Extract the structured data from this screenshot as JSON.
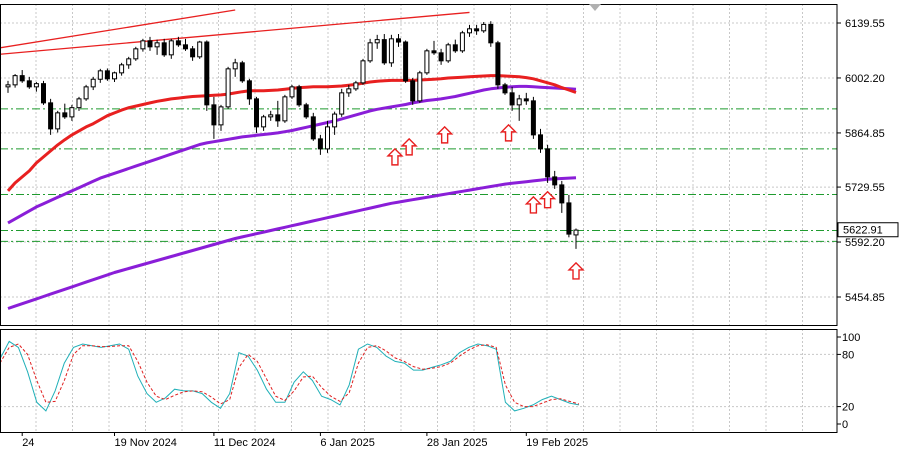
{
  "chart_data": {
    "type": "candlestick",
    "price_panel": {
      "y_ticks": [
        6139.55,
        6002.2,
        5864.85,
        5729.55,
        5592.2,
        5454.85
      ],
      "y_tick_labels": [
        "6139.55",
        "6002.20",
        "5864.85",
        "5729.55",
        "5592.20",
        "5454.85"
      ],
      "ylim": [
        5420,
        6172
      ],
      "current_price": 5622.91,
      "current_price_label": "5622.91",
      "horizontal_levels": [
        5925,
        5825,
        5711,
        5621,
        5594
      ],
      "grid": true,
      "candles": [
        [
          5980,
          5995,
          5965,
          5985
        ],
        [
          5985,
          6012,
          5978,
          6008
        ],
        [
          6008,
          6022,
          5990,
          5995
        ],
        [
          5995,
          6005,
          5975,
          5980
        ],
        [
          5980,
          5992,
          5968,
          5988
        ],
        [
          5988,
          5995,
          5935,
          5940
        ],
        [
          5940,
          5950,
          5860,
          5875
        ],
        [
          5875,
          5920,
          5866,
          5915
        ],
        [
          5915,
          5938,
          5900,
          5905
        ],
        [
          5905,
          5935,
          5895,
          5928
        ],
        [
          5928,
          5955,
          5920,
          5950
        ],
        [
          5950,
          5985,
          5945,
          5980
        ],
        [
          5980,
          6005,
          5972,
          5999
        ],
        [
          5999,
          6025,
          5990,
          6020
        ],
        [
          6020,
          6026,
          5995,
          6000
        ],
        [
          6000,
          6018,
          5992,
          6015
        ],
        [
          6015,
          6040,
          6008,
          6035
        ],
        [
          6035,
          6055,
          6025,
          6050
        ],
        [
          6050,
          6080,
          6045,
          6075
        ],
        [
          6075,
          6100,
          6068,
          6095
        ],
        [
          6095,
          6105,
          6070,
          6080
        ],
        [
          6080,
          6098,
          6060,
          6090
        ],
        [
          6090,
          6100,
          6055,
          6060
        ],
        [
          6060,
          6100,
          6050,
          6095
        ],
        [
          6095,
          6105,
          6080,
          6085
        ],
        [
          6085,
          6100,
          6070,
          6075
        ],
        [
          6075,
          6082,
          6045,
          6055
        ],
        [
          6055,
          6095,
          6050,
          6092
        ],
        [
          6092,
          6096,
          5920,
          5935
        ],
        [
          5935,
          5955,
          5850,
          5885
        ],
        [
          5885,
          5935,
          5870,
          5930
        ],
        [
          5930,
          6030,
          5925,
          6025
        ],
        [
          6025,
          6050,
          6005,
          6040
        ],
        [
          6040,
          6045,
          5990,
          5995
        ],
        [
          5995,
          6000,
          5935,
          5950
        ],
        [
          5950,
          5955,
          5865,
          5880
        ],
        [
          5880,
          5910,
          5870,
          5905
        ],
        [
          5905,
          5920,
          5895,
          5910
        ],
        [
          5910,
          5945,
          5880,
          5895
        ],
        [
          5895,
          5960,
          5890,
          5955
        ],
        [
          5955,
          5985,
          5950,
          5980
        ],
        [
          5980,
          5985,
          5930,
          5935
        ],
        [
          5935,
          5940,
          5900,
          5905
        ],
        [
          5905,
          5915,
          5845,
          5850
        ],
        [
          5850,
          5860,
          5810,
          5825
        ],
        [
          5825,
          5895,
          5815,
          5880
        ],
        [
          5880,
          5918,
          5860,
          5912
        ],
        [
          5912,
          5975,
          5905,
          5965
        ],
        [
          5965,
          5985,
          5955,
          5975
        ],
        [
          5975,
          5995,
          5970,
          5990
        ],
        [
          5990,
          6050,
          5985,
          6045
        ],
        [
          6045,
          6100,
          6040,
          6090
        ],
        [
          6090,
          6110,
          6075,
          6098
        ],
        [
          6098,
          6112,
          6035,
          6040
        ],
        [
          6040,
          6110,
          6030,
          6100
        ],
        [
          6100,
          6112,
          6080,
          6092
        ],
        [
          6092,
          6096,
          5990,
          5995
        ],
        [
          5995,
          6002,
          5935,
          5945
        ],
        [
          5945,
          6020,
          5940,
          6015
        ],
        [
          6015,
          6075,
          6010,
          6070
        ],
        [
          6070,
          6095,
          6060,
          6065
        ],
        [
          6065,
          6075,
          6035,
          6045
        ],
        [
          6045,
          6090,
          6040,
          6085
        ],
        [
          6085,
          6098,
          6065,
          6070
        ],
        [
          6070,
          6120,
          6065,
          6115
        ],
        [
          6115,
          6135,
          6105,
          6125
        ],
        [
          6125,
          6135,
          6110,
          6120
        ],
        [
          6120,
          6142,
          6115,
          6136
        ],
        [
          6136,
          6144,
          6080,
          6090
        ],
        [
          6090,
          6095,
          5975,
          5985
        ],
        [
          5985,
          5990,
          5960,
          5965
        ],
        [
          5965,
          5980,
          5920,
          5935
        ],
        [
          5935,
          5960,
          5895,
          5950
        ],
        [
          5950,
          5965,
          5935,
          5945
        ],
        [
          5945,
          5955,
          5850,
          5860
        ],
        [
          5860,
          5875,
          5815,
          5825
        ],
        [
          5825,
          5835,
          5740,
          5755
        ],
        [
          5755,
          5770,
          5725,
          5735
        ],
        [
          5735,
          5745,
          5665,
          5690
        ],
        [
          5690,
          5710,
          5604,
          5612
        ],
        [
          5610,
          5626,
          5575,
          5622
        ]
      ],
      "ma_red": {
        "start_index": 0,
        "color": "#e82020",
        "values": [
          5720,
          5740,
          5755,
          5770,
          5790,
          5805,
          5820,
          5835,
          5848,
          5860,
          5870,
          5880,
          5888,
          5898,
          5908,
          5915,
          5922,
          5928,
          5932,
          5936,
          5940,
          5944,
          5947,
          5950,
          5952,
          5954,
          5956,
          5957,
          5958,
          5959,
          5960,
          5962,
          5965,
          5968,
          5970,
          5970,
          5970,
          5971,
          5972,
          5974,
          5976,
          5978,
          5979,
          5980,
          5980,
          5980,
          5981,
          5982,
          5984,
          5986,
          5989,
          5992,
          5994,
          5995,
          5996,
          5996,
          5996,
          5996,
          5997,
          5998,
          5999,
          6000,
          6002,
          6003,
          6004,
          6005,
          6006,
          6007,
          6008,
          6008,
          6007,
          6006,
          6005,
          6003,
          6000,
          5995,
          5990,
          5985,
          5978,
          5972,
          5966
        ]
      },
      "ma_purple_1": {
        "start_index": 0,
        "color": "#8a1ed8",
        "values": [
          5640,
          5650,
          5660,
          5670,
          5680,
          5688,
          5696,
          5704,
          5712,
          5720,
          5728,
          5736,
          5744,
          5752,
          5758,
          5764,
          5770,
          5776,
          5782,
          5788,
          5794,
          5800,
          5806,
          5812,
          5818,
          5824,
          5830,
          5836,
          5840,
          5843,
          5846,
          5849,
          5852,
          5855,
          5857,
          5859,
          5861,
          5863,
          5865,
          5868,
          5871,
          5875,
          5879,
          5883,
          5887,
          5891,
          5895,
          5900,
          5905,
          5910,
          5915,
          5920,
          5924,
          5927,
          5930,
          5933,
          5936,
          5940,
          5943,
          5946,
          5948,
          5950,
          5953,
          5956,
          5960,
          5964,
          5968,
          5972,
          5975,
          5977,
          5979,
          5980,
          5981,
          5981,
          5980,
          5979,
          5978,
          5977,
          5976,
          5975,
          5974
        ]
      },
      "ma_purple_2": {
        "start_index": 0,
        "color": "#8a1ed8",
        "values": [
          5426,
          5432,
          5438,
          5444,
          5450,
          5456,
          5462,
          5468,
          5474,
          5480,
          5486,
          5492,
          5498,
          5504,
          5510,
          5516,
          5521,
          5526,
          5531,
          5536,
          5541,
          5546,
          5551,
          5556,
          5561,
          5566,
          5571,
          5576,
          5581,
          5586,
          5591,
          5596,
          5601,
          5605,
          5609,
          5613,
          5617,
          5621,
          5625,
          5629,
          5633,
          5637,
          5641,
          5645,
          5649,
          5653,
          5657,
          5661,
          5665,
          5669,
          5673,
          5677,
          5681,
          5685,
          5689,
          5692,
          5695,
          5698,
          5701,
          5704,
          5707,
          5710,
          5713,
          5716,
          5719,
          5722,
          5725,
          5728,
          5731,
          5734,
          5737,
          5739,
          5741,
          5743,
          5745,
          5747,
          5749,
          5750,
          5751,
          5752,
          5753
        ]
      },
      "trendlines": [
        {
          "color": "#e82020",
          "from": [
            -2,
            6075
          ],
          "to": [
            32,
            6172
          ]
        },
        {
          "color": "#e82020",
          "from": [
            -2,
            6060
          ],
          "to": [
            65,
            6166
          ]
        }
      ],
      "arrows_up": [
        {
          "index": 54.5,
          "value": 5825
        },
        {
          "index": 56.5,
          "value": 5850
        },
        {
          "index": 61.5,
          "value": 5880
        },
        {
          "index": 70.5,
          "value": 5885
        },
        {
          "index": 74.0,
          "value": 5705
        },
        {
          "index": 76.0,
          "value": 5718
        },
        {
          "index": 80.0,
          "value": 5540
        }
      ]
    },
    "stochastic_panel": {
      "y_ticks": [
        100,
        80,
        20,
        0
      ],
      "y_tick_labels": [
        "100",
        "80",
        "20",
        "0"
      ],
      "ylim": [
        0,
        100
      ],
      "main_color": "#20b0b8",
      "signal_color": "#e02020",
      "main": [
        75,
        95,
        88,
        60,
        25,
        15,
        38,
        70,
        88,
        92,
        90,
        88,
        90,
        92,
        86,
        55,
        35,
        25,
        30,
        40,
        38,
        38,
        35,
        25,
        18,
        35,
        82,
        78,
        62,
        40,
        25,
        25,
        48,
        60,
        50,
        32,
        28,
        22,
        45,
        86,
        92,
        88,
        78,
        72,
        70,
        62,
        62,
        65,
        68,
        72,
        82,
        88,
        92,
        90,
        86,
        25,
        15,
        18,
        22,
        28,
        32,
        28,
        24,
        22
      ],
      "signal": [
        70,
        88,
        92,
        80,
        50,
        25,
        26,
        50,
        80,
        90,
        90,
        89,
        89,
        90,
        90,
        72,
        48,
        32,
        28,
        33,
        37,
        38,
        37,
        31,
        23,
        28,
        65,
        80,
        72,
        52,
        32,
        27,
        38,
        54,
        55,
        42,
        32,
        26,
        36,
        70,
        88,
        90,
        84,
        76,
        72,
        66,
        63,
        64,
        66,
        70,
        78,
        85,
        90,
        91,
        88,
        45,
        25,
        20,
        20,
        24,
        28,
        29,
        26,
        23
      ]
    },
    "x_labels": [
      {
        "index": 2,
        "label": "24"
      },
      {
        "index": 15,
        "label": "19 Nov 2024"
      },
      {
        "index": 29,
        "label": "11 Dec 2024"
      },
      {
        "index": 44,
        "label": "6 Jan 2025"
      },
      {
        "index": 59,
        "label": "28 Jan 2025"
      },
      {
        "index": 73,
        "label": "19 Feb 2025"
      }
    ]
  },
  "colors": {
    "grid": "#c8c8c8",
    "level": "#1f9b2f",
    "candle": "#000000",
    "arrow": "#e82020",
    "scale_marker": "#b0b0b0",
    "price_box": "#ffffff"
  }
}
